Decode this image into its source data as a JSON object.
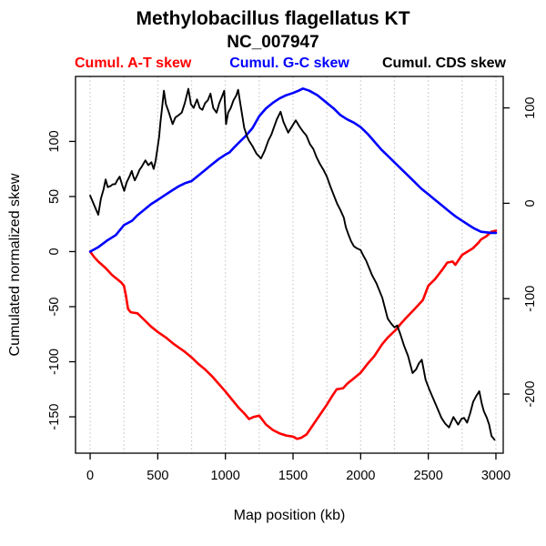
{
  "title": "Methylobacillus flagellatus KT",
  "subtitle": "NC_007947",
  "legend": [
    {
      "label": "Cumul. A-T skew",
      "color": "#ff0000"
    },
    {
      "label": "Cumul. G-C skew",
      "color": "#0000ff"
    },
    {
      "label": "Cumul. CDS skew",
      "color": "#000000"
    }
  ],
  "chart_data": {
    "type": "line",
    "title": "Methylobacillus flagellatus KT",
    "subtitle": "NC_007947",
    "xlabel": "Map position (kb)",
    "ylabel_left": "Cumulated normalized skew",
    "legend_position": "top",
    "grid": {
      "axis": "x",
      "step_kb": 250,
      "style": "dotted",
      "color": "#c9c9c9"
    },
    "x_ticks": [
      0,
      500,
      1000,
      1500,
      2000,
      2500,
      3000
    ],
    "left_ticks": [
      100,
      50,
      0,
      -50,
      -100,
      -150
    ],
    "right_ticks": [
      100,
      0,
      -100,
      -200
    ],
    "xlim": [
      -108,
      3054
    ],
    "ylim_left": [
      -183,
      159
    ],
    "ylim_right": [
      -262,
      133
    ],
    "series": [
      {
        "name": "Cumul. A-T skew",
        "color": "#ff0000",
        "axis": "left",
        "width": 2.6,
        "points": [
          [
            0,
            0
          ],
          [
            30,
            -5
          ],
          [
            60,
            -9
          ],
          [
            115,
            -15
          ],
          [
            160,
            -21
          ],
          [
            230,
            -28
          ],
          [
            250,
            -31
          ],
          [
            265,
            -40
          ],
          [
            280,
            -52
          ],
          [
            300,
            -55
          ],
          [
            350,
            -56
          ],
          [
            400,
            -62
          ],
          [
            450,
            -68
          ],
          [
            500,
            -73
          ],
          [
            560,
            -78
          ],
          [
            620,
            -84
          ],
          [
            700,
            -91
          ],
          [
            750,
            -96
          ],
          [
            800,
            -102
          ],
          [
            850,
            -107
          ],
          [
            900,
            -113
          ],
          [
            950,
            -120
          ],
          [
            1000,
            -127
          ],
          [
            1040,
            -133
          ],
          [
            1100,
            -142
          ],
          [
            1140,
            -147
          ],
          [
            1175,
            -152
          ],
          [
            1210,
            -150
          ],
          [
            1250,
            -149
          ],
          [
            1300,
            -157
          ],
          [
            1352,
            -162
          ],
          [
            1400,
            -165
          ],
          [
            1450,
            -167
          ],
          [
            1500,
            -168
          ],
          [
            1531,
            -170
          ],
          [
            1560,
            -169
          ],
          [
            1600,
            -166
          ],
          [
            1650,
            -157
          ],
          [
            1700,
            -148
          ],
          [
            1750,
            -139
          ],
          [
            1790,
            -131
          ],
          [
            1823,
            -125
          ],
          [
            1870,
            -124
          ],
          [
            1900,
            -120
          ],
          [
            1950,
            -115
          ],
          [
            2000,
            -110
          ],
          [
            2050,
            -102
          ],
          [
            2100,
            -95
          ],
          [
            2159,
            -84
          ],
          [
            2200,
            -78
          ],
          [
            2260,
            -71
          ],
          [
            2300,
            -65
          ],
          [
            2330,
            -61
          ],
          [
            2400,
            -52
          ],
          [
            2460,
            -44
          ],
          [
            2500,
            -31
          ],
          [
            2550,
            -25
          ],
          [
            2600,
            -17
          ],
          [
            2640,
            -10
          ],
          [
            2680,
            -9
          ],
          [
            2700,
            -12
          ],
          [
            2750,
            -3
          ],
          [
            2790,
            0
          ],
          [
            2830,
            3
          ],
          [
            2870,
            8
          ],
          [
            2890,
            11
          ],
          [
            2930,
            14
          ],
          [
            2966,
            18
          ],
          [
            3000,
            19
          ]
        ]
      },
      {
        "name": "Cumul. G-C skew",
        "color": "#0000ff",
        "axis": "left",
        "width": 2.6,
        "points": [
          [
            0,
            0
          ],
          [
            60,
            4
          ],
          [
            125,
            10
          ],
          [
            190,
            15
          ],
          [
            250,
            24
          ],
          [
            310,
            28
          ],
          [
            350,
            33
          ],
          [
            400,
            38
          ],
          [
            450,
            43
          ],
          [
            500,
            47
          ],
          [
            550,
            51
          ],
          [
            600,
            55
          ],
          [
            650,
            59
          ],
          [
            700,
            62
          ],
          [
            750,
            64
          ],
          [
            800,
            69
          ],
          [
            850,
            74
          ],
          [
            900,
            79
          ],
          [
            950,
            84
          ],
          [
            1000,
            88
          ],
          [
            1030,
            90
          ],
          [
            1060,
            94
          ],
          [
            1100,
            99
          ],
          [
            1150,
            105
          ],
          [
            1200,
            112
          ],
          [
            1250,
            123
          ],
          [
            1300,
            130
          ],
          [
            1350,
            135
          ],
          [
            1400,
            139
          ],
          [
            1450,
            142
          ],
          [
            1500,
            144
          ],
          [
            1540,
            146
          ],
          [
            1573,
            148
          ],
          [
            1620,
            146
          ],
          [
            1680,
            142
          ],
          [
            1750,
            135
          ],
          [
            1800,
            130
          ],
          [
            1850,
            124
          ],
          [
            1900,
            120
          ],
          [
            1950,
            117
          ],
          [
            2000,
            113
          ],
          [
            2050,
            107
          ],
          [
            2100,
            100
          ],
          [
            2150,
            93
          ],
          [
            2200,
            87
          ],
          [
            2250,
            81
          ],
          [
            2300,
            75
          ],
          [
            2350,
            69
          ],
          [
            2400,
            63
          ],
          [
            2450,
            57
          ],
          [
            2500,
            52
          ],
          [
            2550,
            47
          ],
          [
            2600,
            42
          ],
          [
            2650,
            37
          ],
          [
            2700,
            32
          ],
          [
            2750,
            28
          ],
          [
            2800,
            24
          ],
          [
            2840,
            21
          ],
          [
            2890,
            18
          ],
          [
            2966,
            17
          ],
          [
            3000,
            17
          ]
        ]
      },
      {
        "name": "Cumul. CDS skew",
        "color": "#000000",
        "axis": "right",
        "width": 1.9,
        "points": [
          [
            0,
            8
          ],
          [
            30,
            -2
          ],
          [
            60,
            -12
          ],
          [
            80,
            5
          ],
          [
            100,
            15
          ],
          [
            115,
            25
          ],
          [
            130,
            17
          ],
          [
            150,
            18
          ],
          [
            170,
            20
          ],
          [
            185,
            20
          ],
          [
            200,
            24
          ],
          [
            218,
            28
          ],
          [
            235,
            20
          ],
          [
            252,
            13
          ],
          [
            270,
            22
          ],
          [
            290,
            28
          ],
          [
            308,
            34
          ],
          [
            320,
            28
          ],
          [
            330,
            24
          ],
          [
            350,
            30
          ],
          [
            365,
            35
          ],
          [
            380,
            38
          ],
          [
            409,
            45
          ],
          [
            430,
            40
          ],
          [
            453,
            43
          ],
          [
            470,
            36
          ],
          [
            485,
            45
          ],
          [
            500,
            60
          ],
          [
            510,
            70
          ],
          [
            520,
            85
          ],
          [
            532,
            100
          ],
          [
            545,
            118
          ],
          [
            560,
            104
          ],
          [
            580,
            96
          ],
          [
            610,
            83
          ],
          [
            630,
            90
          ],
          [
            650,
            92
          ],
          [
            677,
            95
          ],
          [
            700,
            105
          ],
          [
            726,
            120
          ],
          [
            745,
            104
          ],
          [
            765,
            100
          ],
          [
            790,
            109
          ],
          [
            810,
            100
          ],
          [
            830,
            98
          ],
          [
            850,
            105
          ],
          [
            870,
            108
          ],
          [
            890,
            115
          ],
          [
            910,
            100
          ],
          [
            935,
            95
          ],
          [
            955,
            105
          ],
          [
            975,
            112
          ],
          [
            991,
            118
          ],
          [
            1005,
            83
          ],
          [
            1020,
            95
          ],
          [
            1040,
            100
          ],
          [
            1060,
            108
          ],
          [
            1080,
            113
          ],
          [
            1094,
            119
          ],
          [
            1110,
            105
          ],
          [
            1139,
            79
          ],
          [
            1160,
            70
          ],
          [
            1173,
            66
          ],
          [
            1200,
            60
          ],
          [
            1230,
            52
          ],
          [
            1263,
            47
          ],
          [
            1290,
            55
          ],
          [
            1318,
            66
          ],
          [
            1340,
            72
          ],
          [
            1360,
            80
          ],
          [
            1380,
            88
          ],
          [
            1408,
            96
          ],
          [
            1430,
            85
          ],
          [
            1464,
            74
          ],
          [
            1490,
            80
          ],
          [
            1520,
            87
          ],
          [
            1550,
            80
          ],
          [
            1575,
            75
          ],
          [
            1599,
            71
          ],
          [
            1625,
            62
          ],
          [
            1650,
            57
          ],
          [
            1675,
            48
          ],
          [
            1700,
            41
          ],
          [
            1725,
            35
          ],
          [
            1750,
            28
          ],
          [
            1775,
            18
          ],
          [
            1800,
            9
          ],
          [
            1825,
            0
          ],
          [
            1850,
            -7
          ],
          [
            1875,
            -15
          ],
          [
            1890,
            -25
          ],
          [
            1910,
            -33
          ],
          [
            1930,
            -40
          ],
          [
            1950,
            -45
          ],
          [
            1970,
            -47
          ],
          [
            2000,
            -49
          ],
          [
            2020,
            -55
          ],
          [
            2040,
            -60
          ],
          [
            2060,
            -67
          ],
          [
            2083,
            -75
          ],
          [
            2117,
            -84
          ],
          [
            2140,
            -92
          ],
          [
            2160,
            -99
          ],
          [
            2180,
            -110
          ],
          [
            2200,
            -121
          ],
          [
            2225,
            -126
          ],
          [
            2250,
            -130
          ],
          [
            2270,
            -128
          ],
          [
            2295,
            -138
          ],
          [
            2320,
            -149
          ],
          [
            2350,
            -160
          ],
          [
            2384,
            -178
          ],
          [
            2410,
            -174
          ],
          [
            2430,
            -168
          ],
          [
            2452,
            -164
          ],
          [
            2480,
            -185
          ],
          [
            2510,
            -196
          ],
          [
            2540,
            -206
          ],
          [
            2570,
            -216
          ],
          [
            2597,
            -225
          ],
          [
            2625,
            -231
          ],
          [
            2653,
            -235
          ],
          [
            2686,
            -224
          ],
          [
            2720,
            -232
          ],
          [
            2745,
            -226
          ],
          [
            2765,
            -225
          ],
          [
            2787,
            -230
          ],
          [
            2810,
            -220
          ],
          [
            2832,
            -208
          ],
          [
            2855,
            -202
          ],
          [
            2877,
            -197
          ],
          [
            2895,
            -210
          ],
          [
            2911,
            -218
          ],
          [
            2933,
            -225
          ],
          [
            2950,
            -232
          ],
          [
            2967,
            -244
          ],
          [
            2990,
            -248
          ]
        ]
      }
    ]
  }
}
